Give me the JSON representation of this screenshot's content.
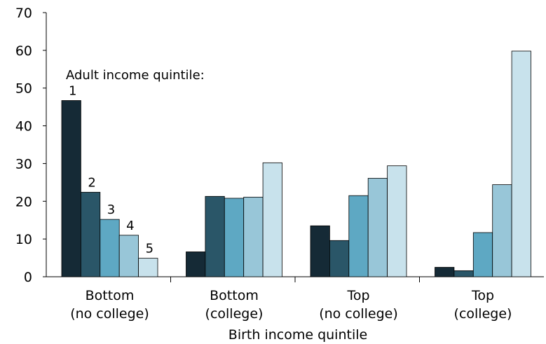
{
  "chart_data": {
    "type": "bar",
    "title": "",
    "xlabel": "Birth income quintile",
    "ylabel": "",
    "ylim": [
      0,
      70
    ],
    "yticks": [
      0,
      10,
      20,
      30,
      40,
      50,
      60,
      70
    ],
    "grid": false,
    "categories": [
      {
        "line1": "Bottom",
        "line2": "(no college)"
      },
      {
        "line1": "Bottom",
        "line2": "(college)"
      },
      {
        "line1": "Top",
        "line2": "(no college)"
      },
      {
        "line1": "Top",
        "line2": "(college)"
      }
    ],
    "series_heading": "Adult income quintile:",
    "series": [
      {
        "label": "1",
        "color": "#152a36",
        "values": [
          46.7,
          6.6,
          13.5,
          2.5
        ]
      },
      {
        "label": "2",
        "color": "#2a5668",
        "values": [
          22.4,
          21.3,
          9.6,
          1.6
        ]
      },
      {
        "label": "3",
        "color": "#5ea8c3",
        "values": [
          15.2,
          20.8,
          21.5,
          11.7
        ]
      },
      {
        "label": "4",
        "color": "#98c6d8",
        "values": [
          11.0,
          21.1,
          26.1,
          24.4
        ]
      },
      {
        "label": "5",
        "color": "#c8e2ec",
        "values": [
          4.9,
          30.2,
          29.4,
          59.8
        ]
      }
    ]
  }
}
